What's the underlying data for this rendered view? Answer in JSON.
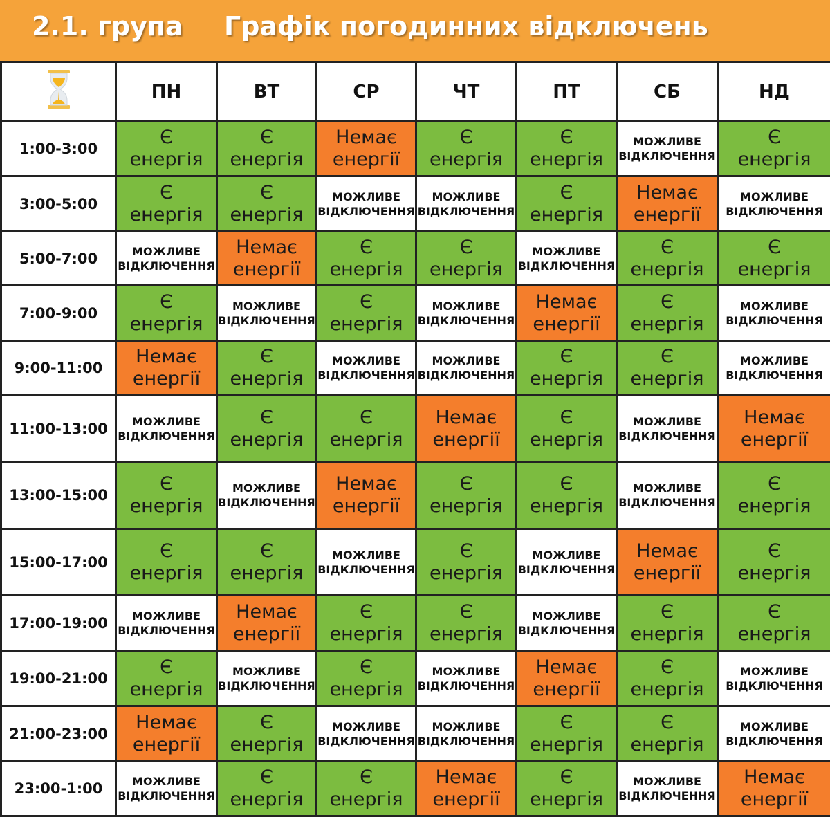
{
  "header": {
    "group": "2.1. група",
    "title": "Графік погодинних відключень",
    "background": "#f5a33a"
  },
  "table": {
    "corner_icon": "hourglass-icon",
    "days": [
      "ПН",
      "ВТ",
      "СР",
      "ЧТ",
      "ПТ",
      "СБ",
      "НД"
    ],
    "states": {
      "on": {
        "label": "Є\nенергія",
        "color": "#7cbc40"
      },
      "off": {
        "label": "Немає\nенергії",
        "color": "#f47e2c"
      },
      "maybe": {
        "label": "МОЖЛИВЕ\nВІДКЛЮЧЕННЯ",
        "color": "#ffffff"
      }
    },
    "rows": [
      {
        "time": "1:00-3:00",
        "cells": [
          "on",
          "on",
          "off",
          "on",
          "on",
          "maybe",
          "on"
        ]
      },
      {
        "time": "3:00-5:00",
        "cells": [
          "on",
          "on",
          "maybe",
          "maybe",
          "on",
          "off",
          "maybe"
        ]
      },
      {
        "time": "5:00-7:00",
        "cells": [
          "maybe",
          "off",
          "on",
          "on",
          "maybe",
          "on",
          "on"
        ]
      },
      {
        "time": "7:00-9:00",
        "cells": [
          "on",
          "maybe",
          "on",
          "maybe",
          "off",
          "on",
          "maybe"
        ]
      },
      {
        "time": "9:00-11:00",
        "cells": [
          "off",
          "on",
          "maybe",
          "maybe",
          "on",
          "on",
          "maybe"
        ]
      },
      {
        "time": "11:00-13:00",
        "cells": [
          "maybe",
          "on",
          "on",
          "off",
          "on",
          "maybe",
          "off"
        ]
      },
      {
        "time": "13:00-15:00",
        "cells": [
          "on",
          "maybe",
          "off",
          "on",
          "on",
          "maybe",
          "on"
        ]
      },
      {
        "time": "15:00-17:00",
        "cells": [
          "on",
          "on",
          "maybe",
          "on",
          "maybe",
          "off",
          "on"
        ]
      },
      {
        "time": "17:00-19:00",
        "cells": [
          "maybe",
          "off",
          "on",
          "on",
          "maybe",
          "on",
          "on"
        ]
      },
      {
        "time": "19:00-21:00",
        "cells": [
          "on",
          "maybe",
          "on",
          "maybe",
          "off",
          "on",
          "maybe"
        ]
      },
      {
        "time": "21:00-23:00",
        "cells": [
          "off",
          "on",
          "maybe",
          "maybe",
          "on",
          "on",
          "maybe"
        ]
      },
      {
        "time": "23:00-1:00",
        "cells": [
          "maybe",
          "on",
          "on",
          "off",
          "on",
          "maybe",
          "off"
        ]
      }
    ]
  }
}
